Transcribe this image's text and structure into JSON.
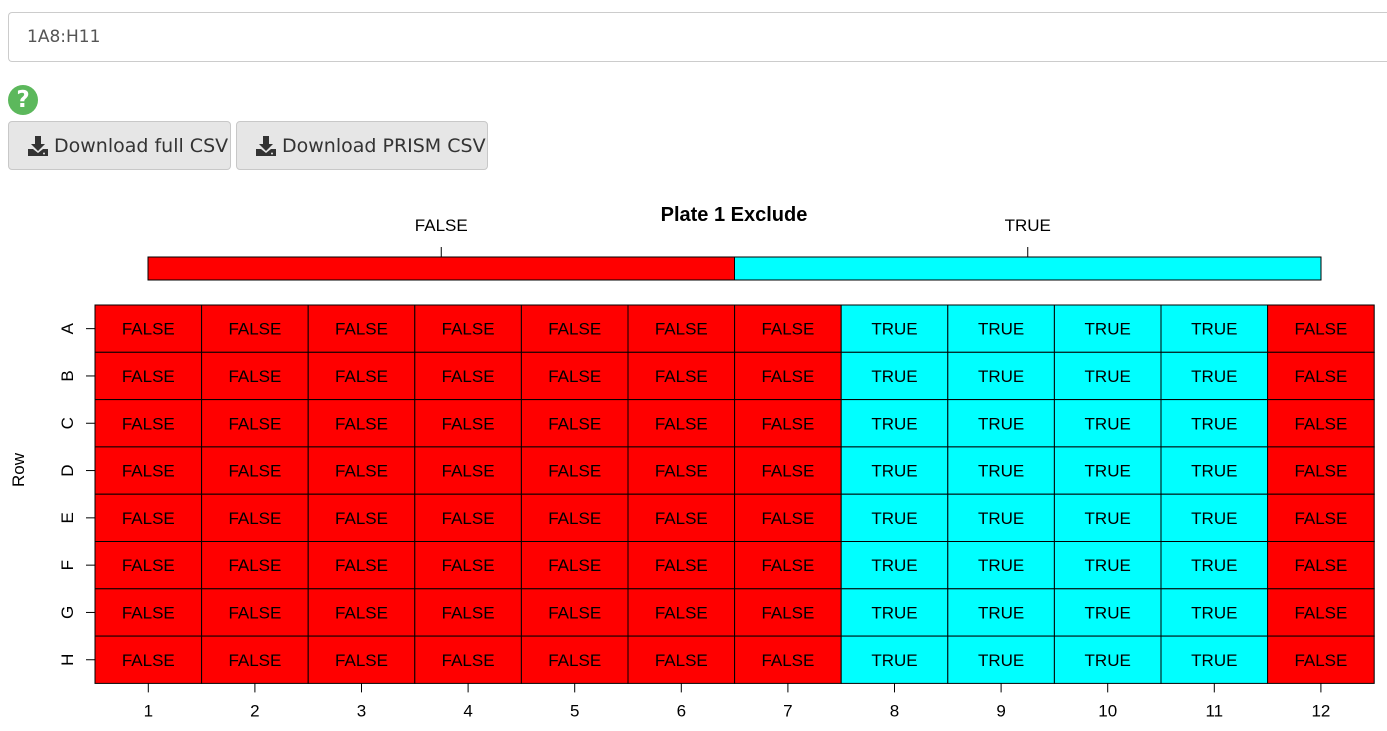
{
  "range_input": {
    "value": "1A8:H11"
  },
  "help": {
    "glyph": "?",
    "icon": "question-circle-icon"
  },
  "buttons": {
    "download_full": "Download full CSV",
    "download_prism": "Download PRISM CSV",
    "icon": "download-icon"
  },
  "colors": {
    "false_fill": "#ff0000",
    "true_fill": "#00ffff",
    "help_green": "#5cb85c"
  },
  "chart_data": {
    "type": "heatmap",
    "title": "Plate 1 Exclude",
    "ylabel": "Row",
    "xlabel": "",
    "legend": {
      "position": "top",
      "entries": [
        "FALSE",
        "TRUE"
      ]
    },
    "columns": [
      "1",
      "2",
      "3",
      "4",
      "5",
      "6",
      "7",
      "8",
      "9",
      "10",
      "11",
      "12"
    ],
    "rows": [
      "A",
      "B",
      "C",
      "D",
      "E",
      "F",
      "G",
      "H"
    ],
    "values": [
      [
        "FALSE",
        "FALSE",
        "FALSE",
        "FALSE",
        "FALSE",
        "FALSE",
        "FALSE",
        "TRUE",
        "TRUE",
        "TRUE",
        "TRUE",
        "FALSE"
      ],
      [
        "FALSE",
        "FALSE",
        "FALSE",
        "FALSE",
        "FALSE",
        "FALSE",
        "FALSE",
        "TRUE",
        "TRUE",
        "TRUE",
        "TRUE",
        "FALSE"
      ],
      [
        "FALSE",
        "FALSE",
        "FALSE",
        "FALSE",
        "FALSE",
        "FALSE",
        "FALSE",
        "TRUE",
        "TRUE",
        "TRUE",
        "TRUE",
        "FALSE"
      ],
      [
        "FALSE",
        "FALSE",
        "FALSE",
        "FALSE",
        "FALSE",
        "FALSE",
        "FALSE",
        "TRUE",
        "TRUE",
        "TRUE",
        "TRUE",
        "FALSE"
      ],
      [
        "FALSE",
        "FALSE",
        "FALSE",
        "FALSE",
        "FALSE",
        "FALSE",
        "FALSE",
        "TRUE",
        "TRUE",
        "TRUE",
        "TRUE",
        "FALSE"
      ],
      [
        "FALSE",
        "FALSE",
        "FALSE",
        "FALSE",
        "FALSE",
        "FALSE",
        "FALSE",
        "TRUE",
        "TRUE",
        "TRUE",
        "TRUE",
        "FALSE"
      ],
      [
        "FALSE",
        "FALSE",
        "FALSE",
        "FALSE",
        "FALSE",
        "FALSE",
        "FALSE",
        "TRUE",
        "TRUE",
        "TRUE",
        "TRUE",
        "FALSE"
      ],
      [
        "FALSE",
        "FALSE",
        "FALSE",
        "FALSE",
        "FALSE",
        "FALSE",
        "FALSE",
        "TRUE",
        "TRUE",
        "TRUE",
        "TRUE",
        "FALSE"
      ]
    ]
  }
}
